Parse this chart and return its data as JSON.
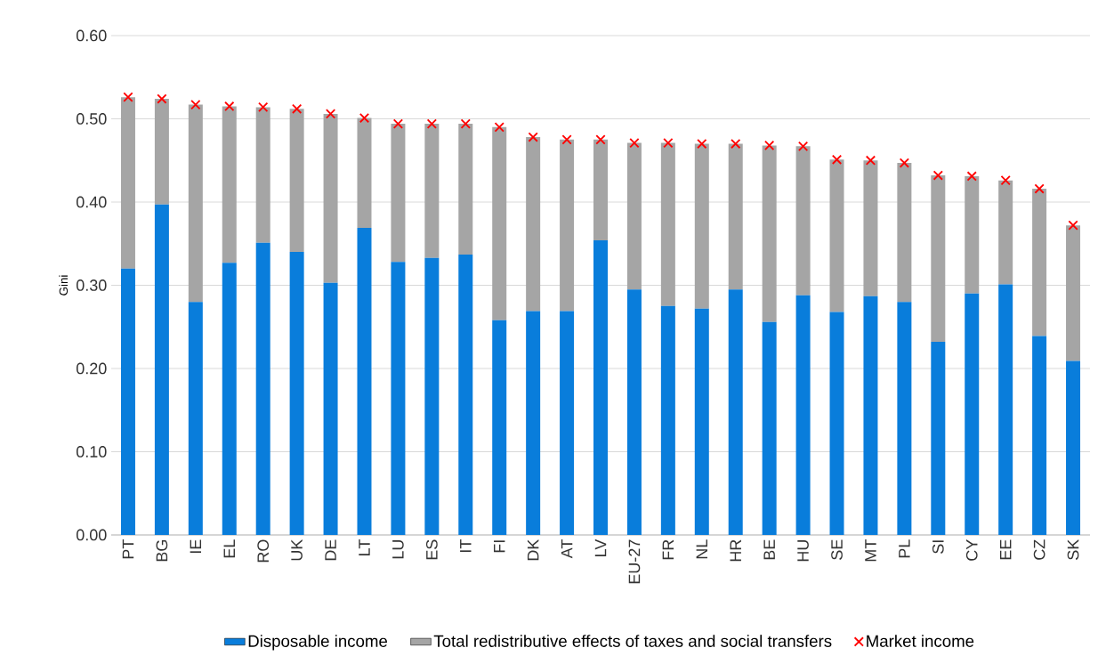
{
  "chart_data": {
    "type": "bar",
    "stacked": true,
    "ylabel": "Gini",
    "categories": [
      "PT",
      "BG",
      "IE",
      "EL",
      "RO",
      "UK",
      "DE",
      "LT",
      "LU",
      "ES",
      "IT",
      "FI",
      "DK",
      "AT",
      "LV",
      "EU-27",
      "FR",
      "NL",
      "HR",
      "BE",
      "HU",
      "SE",
      "MT",
      "PL",
      "SI",
      "CY",
      "EE",
      "CZ",
      "SK"
    ],
    "series": [
      {
        "name": "Disposable income",
        "color": "#097ddb",
        "values": [
          0.32,
          0.397,
          0.28,
          0.327,
          0.351,
          0.34,
          0.303,
          0.369,
          0.328,
          0.333,
          0.337,
          0.258,
          0.269,
          0.269,
          0.354,
          0.295,
          0.275,
          0.272,
          0.295,
          0.256,
          0.288,
          0.268,
          0.287,
          0.28,
          0.232,
          0.29,
          0.301,
          0.239,
          0.209
        ]
      },
      {
        "name": "Total redistributive effects of taxes and social transfers",
        "color": "#a5a5a5",
        "values": [
          0.206,
          0.127,
          0.237,
          0.188,
          0.163,
          0.172,
          0.203,
          0.132,
          0.166,
          0.161,
          0.157,
          0.232,
          0.209,
          0.206,
          0.121,
          0.176,
          0.196,
          0.198,
          0.175,
          0.212,
          0.179,
          0.183,
          0.163,
          0.167,
          0.2,
          0.141,
          0.125,
          0.177,
          0.163
        ]
      },
      {
        "name": "Market income",
        "type": "scatter",
        "marker": "cross",
        "color": "#ff0000",
        "x": [
          "PT",
          "BG",
          "IE",
          "EL",
          "RO",
          "UK",
          "DE",
          "LT",
          "LU",
          "ES",
          "IT",
          "FI",
          "DK",
          "AT",
          "LV",
          "EU-27",
          "FR",
          "NL",
          "HR",
          "BE",
          "HU",
          "SE",
          "MT",
          "PL",
          "SI",
          "CY",
          "EE",
          "CZ",
          "SK"
        ],
        "values": [
          0.526,
          0.524,
          0.517,
          0.515,
          0.514,
          0.512,
          0.506,
          0.501,
          0.494,
          0.494,
          0.494,
          0.49,
          0.478,
          0.475,
          0.475,
          0.471,
          0.471,
          0.47,
          0.47,
          0.468,
          0.467,
          0.451,
          0.45,
          0.447,
          0.432,
          0.431,
          0.426,
          0.416,
          0.372
        ]
      }
    ],
    "ylim": [
      0,
      0.6
    ],
    "yticks": [
      {
        "value": 0,
        "label": "0.00"
      },
      {
        "value": 0.1,
        "label": "0.10"
      },
      {
        "value": 0.2,
        "label": "0.20"
      },
      {
        "value": 0.3,
        "label": "0.30"
      },
      {
        "value": 0.4,
        "label": "0.40"
      },
      {
        "value": 0.5,
        "label": "0.50"
      },
      {
        "value": 0.6,
        "label": "0.60"
      }
    ],
    "grid": "y",
    "legend": "bottom"
  }
}
